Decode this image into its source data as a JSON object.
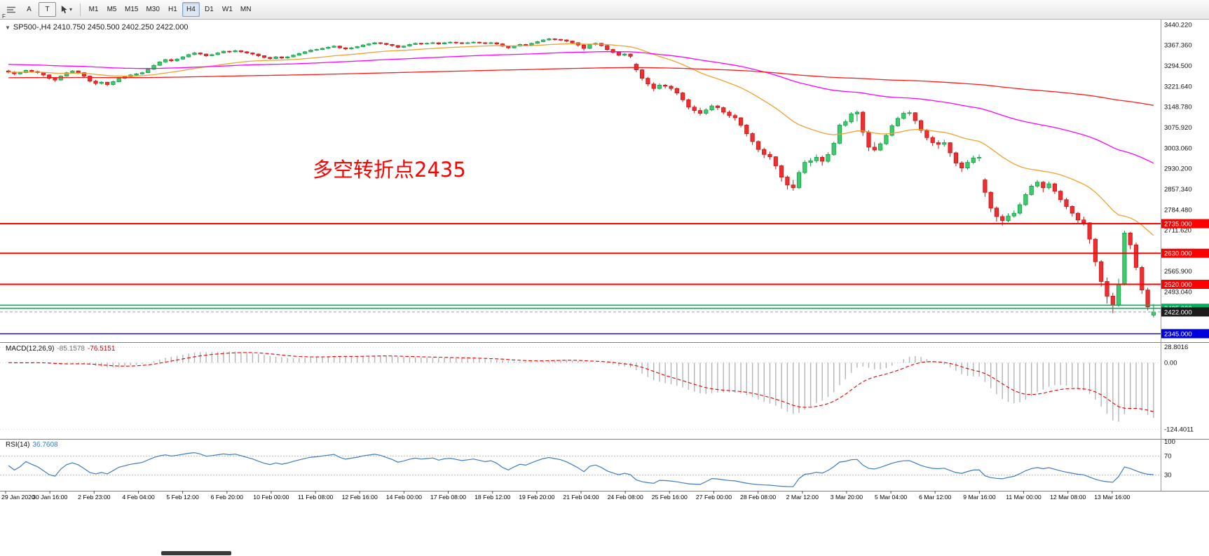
{
  "toolbar": {
    "corner_label": "F",
    "tools": [
      {
        "label": "",
        "icon": "lines-icon"
      },
      {
        "label": "A"
      },
      {
        "label": "T"
      },
      {
        "label": "",
        "icon": "cursor-icon",
        "has_dropdown": true
      }
    ],
    "timeframes": [
      {
        "label": "M1"
      },
      {
        "label": "M5"
      },
      {
        "label": "M15"
      },
      {
        "label": "M30"
      },
      {
        "label": "H1"
      },
      {
        "label": "H4",
        "active": true
      },
      {
        "label": "D1"
      },
      {
        "label": "W1"
      },
      {
        "label": "MN"
      }
    ]
  },
  "chart": {
    "title": "SP500-,H4 2410.750 2450.500 2402.250 2422.000",
    "annotation": "多空转折点2435",
    "price_axis_ticks": [
      "3440.220",
      "3367.360",
      "3294.500",
      "3221.640",
      "3148.780",
      "3075.920",
      "3003.060",
      "2930.200",
      "2857.340",
      "2784.480",
      "2711.620",
      "2565.900",
      "2493.040"
    ],
    "levels": [
      {
        "value": 2735,
        "label": "2735.000",
        "color": "#ff0000",
        "width": 2
      },
      {
        "value": 2630,
        "label": "2630.000",
        "color": "#ff0000",
        "width": 2
      },
      {
        "value": 2520,
        "label": "2520.000",
        "color": "#ff0000",
        "width": 2
      },
      {
        "value": 2446,
        "label": "",
        "color": "#00b25a",
        "width": 1.6
      },
      {
        "value": 2435,
        "label": "2435.000",
        "color": "#00b25a",
        "width": 1.6
      },
      {
        "value": 2422,
        "label": "2422.000",
        "color": "#9aa0a6",
        "box": "#1c1c1c",
        "width": 1,
        "dash": true
      },
      {
        "value": 2345,
        "label": "2345.000",
        "color": "#0000dd",
        "box": "#0000dd",
        "width": 1.4
      }
    ]
  },
  "macd": {
    "label": "MACD(12,26,9)",
    "value_main": "-85.1578",
    "value_signal": "-76.5151",
    "axis": [
      "28.8016",
      "0.00",
      "-124.4011"
    ]
  },
  "rsi": {
    "label": "RSI(14)",
    "value": "36.7608",
    "axis": [
      "100",
      "70",
      "30"
    ],
    "levels": [
      70,
      30
    ]
  },
  "time_axis": [
    "29 Jan 2020",
    "30 Jan 16:00",
    "2 Feb 23:00",
    "4 Feb 04:00",
    "5 Feb 12:00",
    "6 Feb 20:00",
    "10 Feb 00:00",
    "11 Feb 08:00",
    "12 Feb 16:00",
    "14 Feb 00:00",
    "17 Feb 08:00",
    "18 Feb 12:00",
    "19 Feb 20:00",
    "21 Feb 04:00",
    "24 Feb 08:00",
    "25 Feb 16:00",
    "27 Feb 00:00",
    "28 Feb 08:00",
    "2 Mar 12:00",
    "3 Mar 20:00",
    "5 Mar 04:00",
    "6 Mar 12:00",
    "9 Mar 16:00",
    "11 Mar 00:00",
    "12 Mar 08:00",
    "13 Mar 16:00"
  ],
  "style": {
    "up_fill": "#3fca6b",
    "up_stroke": "#0e9e45",
    "down_fill": "#ef2f2f",
    "down_stroke": "#c81414",
    "ma_fast": "#f0a232",
    "ma_mid": "#ff00ff",
    "ma_slow": "#ff1a1a",
    "macd_hist": "#b4b4b4",
    "macd_signal": "#e00000",
    "rsi_line": "#3e7bbf",
    "annotation_color": "#ff0000"
  },
  "chart_data": {
    "type": "candlestick",
    "symbol": "SP500-",
    "timeframe": "H4",
    "current_ohlc": {
      "open": "2410.750",
      "high": "2450.500",
      "low": "2402.250",
      "close": "2422.000"
    },
    "ohlc": [
      [
        3276,
        3280,
        3268,
        3272
      ],
      [
        3272,
        3275,
        3261,
        3266
      ],
      [
        3266,
        3273,
        3263,
        3270
      ],
      [
        3270,
        3281,
        3268,
        3278
      ],
      [
        3278,
        3281,
        3270,
        3274
      ],
      [
        3274,
        3277,
        3266,
        3270
      ],
      [
        3270,
        3272,
        3256,
        3262
      ],
      [
        3262,
        3264,
        3245,
        3250
      ],
      [
        3250,
        3254,
        3238,
        3244
      ],
      [
        3244,
        3261,
        3242,
        3258
      ],
      [
        3258,
        3273,
        3256,
        3270
      ],
      [
        3270,
        3279,
        3267,
        3276
      ],
      [
        3276,
        3278,
        3265,
        3270
      ],
      [
        3270,
        3272,
        3252,
        3258
      ],
      [
        3258,
        3260,
        3235,
        3240
      ],
      [
        3240,
        3244,
        3226,
        3232
      ],
      [
        3232,
        3240,
        3228,
        3236
      ],
      [
        3236,
        3238,
        3222,
        3228
      ],
      [
        3228,
        3242,
        3225,
        3238
      ],
      [
        3238,
        3253,
        3236,
        3250
      ],
      [
        3250,
        3259,
        3247,
        3256
      ],
      [
        3256,
        3265,
        3253,
        3262
      ],
      [
        3262,
        3269,
        3259,
        3266
      ],
      [
        3266,
        3273,
        3263,
        3270
      ],
      [
        3270,
        3285,
        3268,
        3282
      ],
      [
        3282,
        3299,
        3280,
        3296
      ],
      [
        3296,
        3311,
        3294,
        3308
      ],
      [
        3308,
        3319,
        3305,
        3316
      ],
      [
        3316,
        3320,
        3308,
        3312
      ],
      [
        3312,
        3321,
        3309,
        3318
      ],
      [
        3318,
        3329,
        3316,
        3326
      ],
      [
        3326,
        3337,
        3324,
        3334
      ],
      [
        3334,
        3343,
        3332,
        3340
      ],
      [
        3340,
        3342,
        3332,
        3336
      ],
      [
        3336,
        3338,
        3326,
        3330
      ],
      [
        3330,
        3337,
        3328,
        3334
      ],
      [
        3334,
        3343,
        3332,
        3340
      ],
      [
        3340,
        3349,
        3338,
        3346
      ],
      [
        3346,
        3348,
        3340,
        3344
      ],
      [
        3344,
        3351,
        3342,
        3348
      ],
      [
        3348,
        3350,
        3340,
        3344
      ],
      [
        3344,
        3347,
        3336,
        3340
      ],
      [
        3340,
        3342,
        3332,
        3336
      ],
      [
        3336,
        3338,
        3326,
        3330
      ],
      [
        3330,
        3332,
        3320,
        3324
      ],
      [
        3324,
        3327,
        3316,
        3320
      ],
      [
        3320,
        3329,
        3318,
        3326
      ],
      [
        3326,
        3328,
        3318,
        3322
      ],
      [
        3322,
        3329,
        3319,
        3326
      ],
      [
        3326,
        3335,
        3324,
        3332
      ],
      [
        3332,
        3341,
        3330,
        3338
      ],
      [
        3338,
        3347,
        3336,
        3344
      ],
      [
        3344,
        3353,
        3342,
        3350
      ],
      [
        3350,
        3355,
        3347,
        3352
      ],
      [
        3352,
        3359,
        3350,
        3356
      ],
      [
        3356,
        3363,
        3354,
        3360
      ],
      [
        3360,
        3367,
        3358,
        3364
      ],
      [
        3364,
        3366,
        3355,
        3358
      ],
      [
        3358,
        3360,
        3350,
        3354
      ],
      [
        3354,
        3361,
        3352,
        3358
      ],
      [
        3358,
        3365,
        3356,
        3362
      ],
      [
        3362,
        3371,
        3360,
        3368
      ],
      [
        3368,
        3375,
        3366,
        3372
      ],
      [
        3372,
        3379,
        3370,
        3376
      ],
      [
        3376,
        3378,
        3370,
        3374
      ],
      [
        3374,
        3376,
        3366,
        3370
      ],
      [
        3370,
        3372,
        3362,
        3366
      ],
      [
        3366,
        3368,
        3356,
        3360
      ],
      [
        3360,
        3367,
        3358,
        3364
      ],
      [
        3364,
        3373,
        3362,
        3370
      ],
      [
        3370,
        3377,
        3368,
        3374
      ],
      [
        3374,
        3376,
        3368,
        3372
      ],
      [
        3372,
        3377,
        3370,
        3374
      ],
      [
        3374,
        3379,
        3372,
        3376
      ],
      [
        3376,
        3378,
        3368,
        3372
      ],
      [
        3372,
        3379,
        3370,
        3376
      ],
      [
        3376,
        3381,
        3374,
        3378
      ],
      [
        3378,
        3380,
        3372,
        3376
      ],
      [
        3376,
        3378,
        3371,
        3374
      ],
      [
        3374,
        3379,
        3372,
        3376
      ],
      [
        3376,
        3381,
        3374,
        3378
      ],
      [
        3378,
        3380,
        3373,
        3376
      ],
      [
        3376,
        3378,
        3371,
        3374
      ],
      [
        3374,
        3379,
        3372,
        3376
      ],
      [
        3376,
        3378,
        3369,
        3372
      ],
      [
        3372,
        3374,
        3361,
        3364
      ],
      [
        3364,
        3366,
        3354,
        3358
      ],
      [
        3358,
        3367,
        3356,
        3364
      ],
      [
        3364,
        3373,
        3362,
        3370
      ],
      [
        3370,
        3372,
        3364,
        3368
      ],
      [
        3368,
        3377,
        3366,
        3374
      ],
      [
        3374,
        3383,
        3372,
        3380
      ],
      [
        3380,
        3389,
        3378,
        3386
      ],
      [
        3386,
        3393,
        3384,
        3390
      ],
      [
        3390,
        3392,
        3384,
        3388
      ],
      [
        3388,
        3390,
        3382,
        3386
      ],
      [
        3386,
        3388,
        3378,
        3382
      ],
      [
        3382,
        3384,
        3372,
        3376
      ],
      [
        3376,
        3378,
        3362,
        3368
      ],
      [
        3368,
        3370,
        3348,
        3356
      ],
      [
        3356,
        3373,
        3354,
        3370
      ],
      [
        3370,
        3377,
        3366,
        3374
      ],
      [
        3374,
        3376,
        3362,
        3366
      ],
      [
        3366,
        3368,
        3348,
        3352
      ],
      [
        3352,
        3355,
        3338,
        3342
      ],
      [
        3342,
        3345,
        3328,
        3332
      ],
      [
        3332,
        3340,
        3328,
        3336
      ],
      [
        3336,
        3338,
        3322,
        3328
      ],
      [
        3300,
        3305,
        3272,
        3280
      ],
      [
        3280,
        3283,
        3242,
        3250
      ],
      [
        3250,
        3255,
        3222,
        3230
      ],
      [
        3230,
        3236,
        3204,
        3214
      ],
      [
        3214,
        3232,
        3210,
        3226
      ],
      [
        3226,
        3230,
        3214,
        3222
      ],
      [
        3222,
        3226,
        3206,
        3214
      ],
      [
        3214,
        3218,
        3190,
        3198
      ],
      [
        3198,
        3202,
        3166,
        3174
      ],
      [
        3174,
        3178,
        3140,
        3148
      ],
      [
        3148,
        3154,
        3126,
        3136
      ],
      [
        3136,
        3146,
        3118,
        3126
      ],
      [
        3126,
        3144,
        3120,
        3138
      ],
      [
        3138,
        3158,
        3134,
        3152
      ],
      [
        3152,
        3156,
        3138,
        3146
      ],
      [
        3146,
        3150,
        3122,
        3130
      ],
      [
        3130,
        3136,
        3110,
        3118
      ],
      [
        3118,
        3124,
        3100,
        3110
      ],
      [
        3110,
        3112,
        3076,
        3084
      ],
      [
        3084,
        3088,
        3044,
        3054
      ],
      [
        3054,
        3058,
        3014,
        3026
      ],
      [
        3026,
        3030,
        2988,
        2998
      ],
      [
        2998,
        3004,
        2968,
        2980
      ],
      [
        2980,
        2990,
        2962,
        2972
      ],
      [
        2972,
        2974,
        2928,
        2940
      ],
      [
        2940,
        2944,
        2884,
        2900
      ],
      [
        2900,
        2906,
        2856,
        2872
      ],
      [
        2872,
        2890,
        2852,
        2862
      ],
      [
        2862,
        2924,
        2858,
        2916
      ],
      [
        2916,
        2960,
        2910,
        2952
      ],
      [
        2952,
        2968,
        2938,
        2958
      ],
      [
        2958,
        2980,
        2950,
        2970
      ],
      [
        2970,
        2976,
        2940,
        2956
      ],
      [
        2956,
        2988,
        2950,
        2980
      ],
      [
        2980,
        3026,
        2976,
        3020
      ],
      [
        3020,
        3090,
        3016,
        3084
      ],
      [
        3084,
        3104,
        3078,
        3096
      ],
      [
        3096,
        3130,
        3090,
        3124
      ],
      [
        3124,
        3136,
        3098,
        3130
      ],
      [
        3130,
        3134,
        3046,
        3060
      ],
      [
        3060,
        3066,
        2992,
        3006
      ],
      [
        3006,
        3024,
        2990,
        2996
      ],
      [
        2996,
        3024,
        2992,
        3018
      ],
      [
        3018,
        3054,
        3014,
        3048
      ],
      [
        3048,
        3088,
        3044,
        3082
      ],
      [
        3082,
        3114,
        3078,
        3108
      ],
      [
        3108,
        3132,
        3104,
        3126
      ],
      [
        3126,
        3136,
        3118,
        3128
      ],
      [
        3128,
        3130,
        3088,
        3100
      ],
      [
        3100,
        3104,
        3056,
        3066
      ],
      [
        3066,
        3070,
        3030,
        3040
      ],
      [
        3040,
        3046,
        3010,
        3022
      ],
      [
        3022,
        3030,
        3000,
        3016
      ],
      [
        3016,
        3032,
        3008,
        3022
      ],
      [
        3022,
        3024,
        2972,
        2986
      ],
      [
        2986,
        2990,
        2938,
        2950
      ],
      [
        2950,
        2956,
        2918,
        2932
      ],
      [
        2932,
        2960,
        2926,
        2952
      ],
      [
        2952,
        2976,
        2946,
        2968
      ],
      [
        2968,
        2980,
        2956,
        2970
      ],
      [
        2890,
        2896,
        2830,
        2846
      ],
      [
        2846,
        2850,
        2776,
        2790
      ],
      [
        2790,
        2796,
        2742,
        2760
      ],
      [
        2760,
        2768,
        2728,
        2746
      ],
      [
        2746,
        2772,
        2740,
        2762
      ],
      [
        2762,
        2782,
        2756,
        2772
      ],
      [
        2772,
        2810,
        2766,
        2802
      ],
      [
        2802,
        2844,
        2798,
        2838
      ],
      [
        2838,
        2874,
        2834,
        2868
      ],
      [
        2868,
        2890,
        2862,
        2882
      ],
      [
        2882,
        2886,
        2846,
        2862
      ],
      [
        2862,
        2884,
        2856,
        2876
      ],
      [
        2876,
        2880,
        2840,
        2850
      ],
      [
        2850,
        2854,
        2810,
        2820
      ],
      [
        2820,
        2826,
        2786,
        2796
      ],
      [
        2796,
        2800,
        2760,
        2772
      ],
      [
        2772,
        2776,
        2736,
        2748
      ],
      [
        2748,
        2760,
        2728,
        2738
      ],
      [
        2738,
        2740,
        2664,
        2680
      ],
      [
        2680,
        2684,
        2584,
        2600
      ],
      [
        2600,
        2606,
        2512,
        2530
      ],
      [
        2530,
        2544,
        2452,
        2478
      ],
      [
        2478,
        2490,
        2418,
        2446
      ],
      [
        2446,
        2540,
        2440,
        2520
      ],
      [
        2520,
        2710,
        2516,
        2702
      ],
      [
        2702,
        2706,
        2644,
        2660
      ],
      [
        2660,
        2668,
        2570,
        2580
      ],
      [
        2580,
        2586,
        2486,
        2500
      ],
      [
        2500,
        2508,
        2428,
        2440
      ],
      [
        2410.75,
        2450.5,
        2402.25,
        2422
      ]
    ]
  }
}
